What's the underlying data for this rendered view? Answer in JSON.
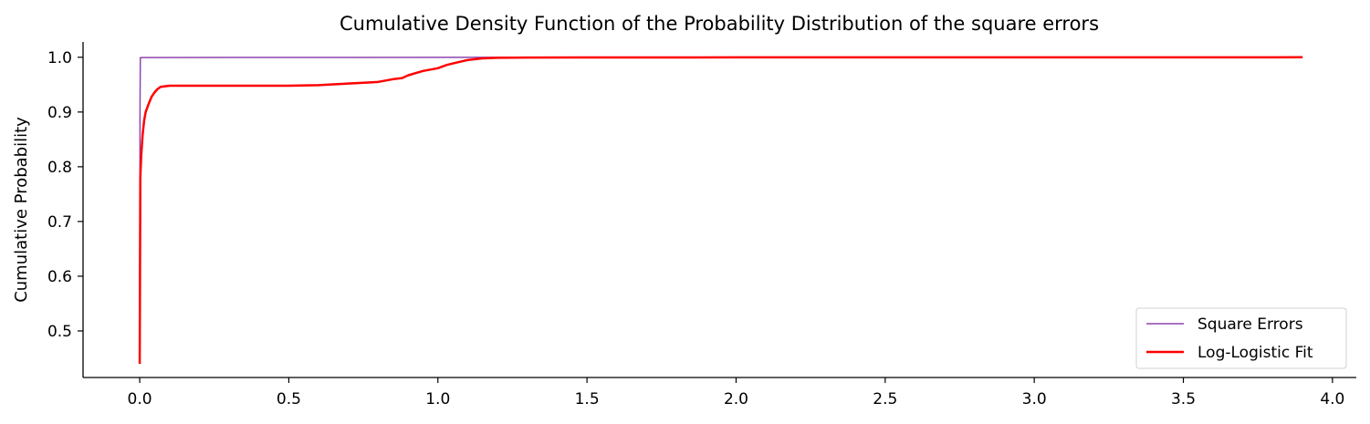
{
  "chart_data": {
    "type": "line",
    "title": "Cumulative Density Function of the Probability Distribution of the square errors",
    "xlabel": "",
    "ylabel": "Cumulative Probability",
    "xlim": [
      -0.19,
      4.08
    ],
    "ylim": [
      0.415,
      1.028
    ],
    "x_ticks": [
      0.0,
      0.5,
      1.0,
      1.5,
      2.0,
      2.5,
      3.0,
      3.5,
      4.0
    ],
    "x_tick_labels": [
      "0.0",
      "0.5",
      "1.0",
      "1.5",
      "2.0",
      "2.5",
      "3.0",
      "3.5",
      "4.0"
    ],
    "y_ticks": [
      0.5,
      0.6,
      0.7,
      0.8,
      0.9,
      1.0
    ],
    "y_tick_labels": [
      "0.5",
      "0.6",
      "0.7",
      "0.8",
      "0.9",
      "1.0"
    ],
    "grid": false,
    "legend_position": "lower-right",
    "spines": "left-bottom",
    "series": [
      {
        "name": "Square Errors",
        "color": "#8e44ad",
        "points": [
          [
            0.0,
            0.44
          ],
          [
            0.001,
            0.9
          ],
          [
            0.002,
            0.9993
          ],
          [
            0.01,
            0.9995
          ],
          [
            0.3,
            0.9997
          ],
          [
            1.1,
            0.9998
          ],
          [
            3.9,
            1.0
          ]
        ]
      },
      {
        "name": "Log-Logistic Fit",
        "color": "#ff0000",
        "points": [
          [
            0.0,
            0.44
          ],
          [
            0.002,
            0.78
          ],
          [
            0.005,
            0.82
          ],
          [
            0.01,
            0.86
          ],
          [
            0.015,
            0.885
          ],
          [
            0.02,
            0.9
          ],
          [
            0.03,
            0.915
          ],
          [
            0.04,
            0.928
          ],
          [
            0.05,
            0.936
          ],
          [
            0.06,
            0.942
          ],
          [
            0.07,
            0.946
          ],
          [
            0.1,
            0.948
          ],
          [
            0.3,
            0.948
          ],
          [
            0.5,
            0.948
          ],
          [
            0.6,
            0.949
          ],
          [
            0.7,
            0.952
          ],
          [
            0.8,
            0.955
          ],
          [
            0.85,
            0.96
          ],
          [
            0.88,
            0.962
          ],
          [
            0.9,
            0.967
          ],
          [
            0.95,
            0.975
          ],
          [
            1.0,
            0.98
          ],
          [
            1.03,
            0.986
          ],
          [
            1.06,
            0.99
          ],
          [
            1.1,
            0.995
          ],
          [
            1.15,
            0.998
          ],
          [
            1.2,
            0.999
          ],
          [
            1.3,
            0.9995
          ],
          [
            1.5,
            0.9997
          ],
          [
            2.0,
            0.9998
          ],
          [
            3.0,
            0.9999
          ],
          [
            3.9,
            1.0
          ]
        ]
      }
    ]
  }
}
